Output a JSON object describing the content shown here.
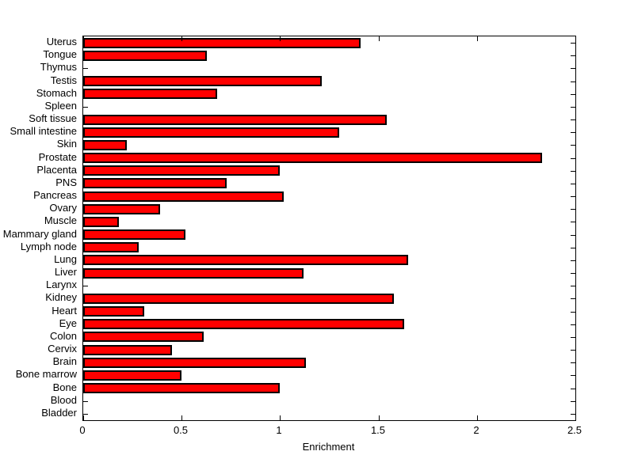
{
  "chart_data": {
    "type": "bar",
    "orientation": "horizontal",
    "title": "",
    "xlabel": "Enrichment",
    "ylabel": "",
    "xlim": [
      0,
      2.5
    ],
    "xticks": [
      "0",
      "0.5",
      "1",
      "1.5",
      "2",
      "2.5"
    ],
    "xtick_values": [
      0,
      0.5,
      1,
      1.5,
      2,
      2.5
    ],
    "grid": false,
    "bar_color": "#FF0000",
    "bar_edge_color": "#000000",
    "axis_color": "#000000",
    "background_color": "#FFFFFF",
    "categories_top_to_bottom": [
      "Uterus",
      "Tongue",
      "Thymus",
      "Testis",
      "Stomach",
      "Spleen",
      "Soft tissue",
      "Small intestine",
      "Skin",
      "Prostate",
      "Placenta",
      "PNS",
      "Pancreas",
      "Ovary",
      "Muscle",
      "Mammary gland",
      "Lymph node",
      "Lung",
      "Liver",
      "Larynx",
      "Kidney",
      "Heart",
      "Eye",
      "Colon",
      "Cervix",
      "Brain",
      "Bone marrow",
      "Bone",
      "Blood",
      "Bladder"
    ],
    "values": [
      1.41,
      0.63,
      0,
      1.21,
      0.68,
      0,
      1.54,
      1.3,
      0.22,
      2.33,
      1.0,
      0.73,
      1.02,
      0.39,
      0.18,
      0.52,
      0.28,
      1.65,
      1.12,
      0,
      1.58,
      0.31,
      1.63,
      0.61,
      0.45,
      1.13,
      0.5,
      1.0,
      0,
      0
    ]
  }
}
